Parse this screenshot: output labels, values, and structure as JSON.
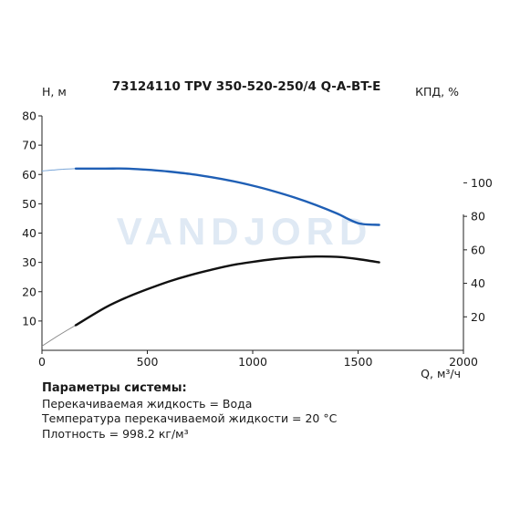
{
  "chart_data": {
    "type": "line",
    "title": "73124110 TPV 350-520-250/4 Q-A-BT-E",
    "xlabel": "Q, м³/ч",
    "ylabel": "H, м",
    "y2label": "КПД, %",
    "xlim": [
      0,
      2000
    ],
    "ylim": [
      0,
      80
    ],
    "y2lim": [
      0,
      140
    ],
    "x_ticks": [
      0,
      500,
      1000,
      1500,
      2000
    ],
    "y_ticks": [
      10,
      20,
      30,
      40,
      50,
      60,
      70,
      80
    ],
    "y2_ticks": [
      20,
      40,
      60,
      80,
      100
    ],
    "grid": false,
    "watermark": "VANDJORD",
    "series": [
      {
        "axis": "left",
        "color": "#1f5fb5",
        "x": [
          160,
          300,
          400,
          500,
          600,
          700,
          800,
          900,
          1000,
          1100,
          1200,
          1300,
          1400,
          1500,
          1600
        ],
        "y": [
          62.0,
          62.0,
          62.0,
          61.6,
          61.0,
          60.2,
          59.1,
          57.8,
          56.2,
          54.3,
          52.1,
          49.6,
          46.7,
          43.4,
          42.8
        ],
        "extension": {
          "color": "#7aa6d8",
          "x": [
            0,
            50,
            100,
            160
          ],
          "y": [
            61.2,
            61.5,
            61.8,
            62.0
          ]
        }
      },
      {
        "axis": "right",
        "color": "#111111",
        "x": [
          160,
          300,
          400,
          500,
          600,
          700,
          800,
          900,
          1000,
          1100,
          1200,
          1300,
          1400,
          1500,
          1600
        ],
        "y": [
          15.0,
          25.5,
          31.5,
          36.5,
          41.0,
          44.8,
          48.0,
          50.8,
          52.8,
          54.5,
          55.5,
          56.0,
          55.8,
          54.5,
          52.5
        ],
        "extension": {
          "color": "#888888",
          "x": [
            0,
            80,
            160
          ],
          "y": [
            2.5,
            9.0,
            15.0
          ]
        }
      }
    ]
  },
  "params": {
    "title": "Параметры системы:",
    "lines": [
      "Перекачиваемая жидкость = Вода",
      "Температура перекачиваемой жидкости = 20 °C",
      "Плотность = 998.2 кг/м³"
    ]
  },
  "colors": {
    "axis": "#222222",
    "watermark": "#dfe9f4"
  }
}
